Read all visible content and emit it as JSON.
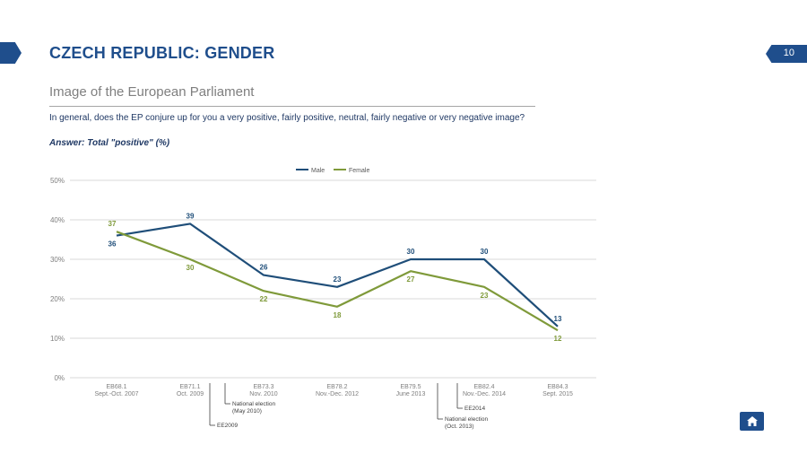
{
  "header": {
    "title": "CZECH REPUBLIC: GENDER",
    "page_number": "10"
  },
  "subtitle": "Image of the European Parliament",
  "question": "In general, does the EP conjure up for you a very positive, fairly positive, neutral, fairly negative or very negative image?",
  "answer": "Answer: Total \"positive\" (%)",
  "colors": {
    "accent": "#1f4e8c",
    "male": "#1f4e79",
    "female": "#7f9a3a"
  },
  "icons": {
    "home": "home-icon"
  },
  "chart_data": {
    "type": "line",
    "categories": [
      [
        "EB68.1",
        "Sept.-Oct. 2007"
      ],
      [
        "EB71.1",
        "Oct. 2009"
      ],
      [
        "EB73.3",
        "Nov. 2010"
      ],
      [
        "EB78.2",
        "Nov.-Dec. 2012"
      ],
      [
        "EB79.5",
        "June 2013"
      ],
      [
        "EB82.4",
        "Nov.-Dec. 2014"
      ],
      [
        "EB84.3",
        "Sept. 2015"
      ]
    ],
    "series": [
      {
        "name": "Male",
        "values": [
          36,
          39,
          26,
          23,
          30,
          30,
          13
        ]
      },
      {
        "name": "Female",
        "values": [
          37,
          30,
          22,
          18,
          27,
          23,
          12
        ]
      }
    ],
    "yticks": [
      "0%",
      "10%",
      "20%",
      "30%",
      "40%",
      "50%"
    ],
    "ylim": [
      0,
      50
    ],
    "legend_position": "top-center",
    "grid": true,
    "annotations": [
      {
        "label": [
          "National election",
          "(May 2010)"
        ],
        "after_category": 1
      },
      {
        "label": [
          "EE2009"
        ],
        "after_category": 1
      },
      {
        "label": [
          "National election",
          "(Oct. 2013)"
        ],
        "after_category": 4
      },
      {
        "label": [
          "EE2014"
        ],
        "after_category": 4
      }
    ]
  }
}
